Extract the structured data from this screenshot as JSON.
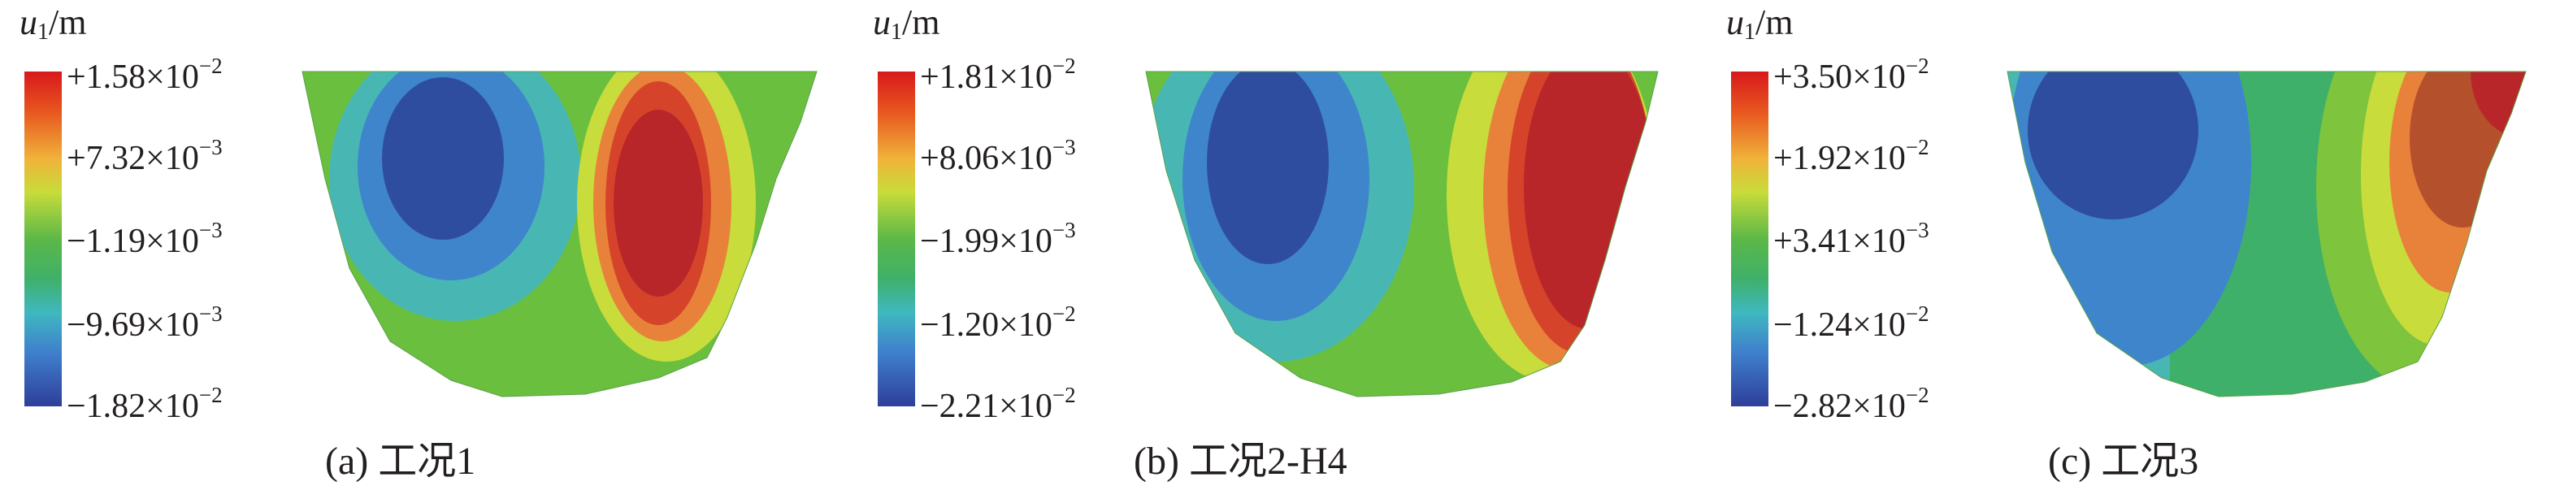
{
  "panels": [
    {
      "unit": {
        "symbol": "u",
        "subscript": "1",
        "suffix": "/m"
      },
      "ticks": [
        {
          "base": "+1.58×10",
          "exp": "−2"
        },
        {
          "base": "+7.32×10",
          "exp": "−3"
        },
        {
          "base": "−1.19×10",
          "exp": "−3"
        },
        {
          "base": "−9.69×10",
          "exp": "−3"
        },
        {
          "base": "−1.82×10",
          "exp": "−2"
        }
      ],
      "caption": "(a) 工况1"
    },
    {
      "unit": {
        "symbol": "u",
        "subscript": "1",
        "suffix": "/m"
      },
      "ticks": [
        {
          "base": "+1.81×10",
          "exp": "−2"
        },
        {
          "base": "+8.06×10",
          "exp": "−3"
        },
        {
          "base": "−1.99×10",
          "exp": "−3"
        },
        {
          "base": "−1.20×10",
          "exp": "−2"
        },
        {
          "base": "−2.21×10",
          "exp": "−2"
        }
      ],
      "caption": "(b) 工况2-H4"
    },
    {
      "unit": {
        "symbol": "u",
        "subscript": "1",
        "suffix": "/m"
      },
      "ticks": [
        {
          "base": "+3.50×10",
          "exp": "−2"
        },
        {
          "base": "+1.92×10",
          "exp": "−2"
        },
        {
          "base": "+3.41×10",
          "exp": "−3"
        },
        {
          "base": "−1.24×10",
          "exp": "−2"
        },
        {
          "base": "−2.82×10",
          "exp": "−2"
        }
      ],
      "caption": "(c) 工况3"
    }
  ],
  "colorscale": [
    "#d7191c",
    "#e85a2a",
    "#f5a23a",
    "#c8dc3c",
    "#6bbf3f",
    "#3fb56a",
    "#40b3b8",
    "#3f7fc8",
    "#2e4a9c"
  ]
}
